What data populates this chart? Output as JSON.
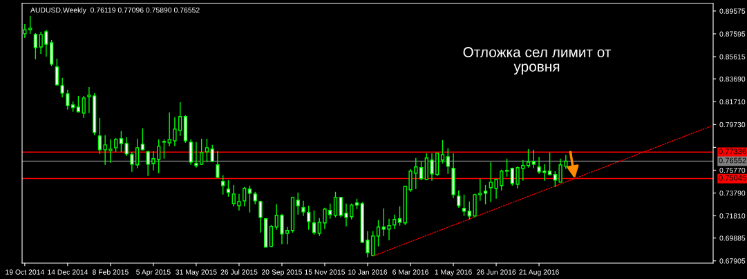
{
  "chart_data": {
    "type": "candlestick",
    "title": "AUDUSD,Weekly  0.76119 0.77096 0.75890 0.76552",
    "categories": [
      "19 Oct 2014",
      null,
      null,
      null,
      null,
      null,
      null,
      null,
      "14 Dec 2014",
      null,
      null,
      null,
      null,
      null,
      null,
      null,
      "8 Feb 2015",
      null,
      null,
      null,
      null,
      null,
      null,
      null,
      "5 Apr 2015",
      null,
      null,
      null,
      null,
      null,
      null,
      null,
      "31 May 2015",
      null,
      null,
      null,
      null,
      null,
      null,
      null,
      "26 Jul 2015",
      null,
      null,
      null,
      null,
      null,
      null,
      null,
      "20 Sep 2015",
      null,
      null,
      null,
      null,
      null,
      null,
      null,
      "15 Nov 2015",
      null,
      null,
      null,
      null,
      null,
      null,
      null,
      "10 Jan 2016",
      null,
      null,
      null,
      null,
      null,
      null,
      null,
      "6 Mar 2016",
      null,
      null,
      null,
      null,
      null,
      null,
      null,
      "1 May 2016",
      null,
      null,
      null,
      null,
      null,
      null,
      null,
      "26 Jun 2016",
      null,
      null,
      null,
      null,
      null,
      null,
      null,
      "21 Aug 2016",
      null,
      null,
      null,
      null,
      null,
      null,
      null,
      null,
      null,
      null,
      null,
      null,
      null,
      null,
      null,
      null,
      null,
      null,
      null,
      null,
      null,
      null,
      null,
      null,
      null,
      null,
      null,
      null,
      null,
      null,
      null,
      null
    ],
    "color": "#00ff00",
    "ohlc": [
      [
        0.876,
        0.8844,
        0.8724,
        0.8796
      ],
      [
        0.8796,
        0.8916,
        0.876,
        0.8808
      ],
      [
        0.8754,
        0.8766,
        0.8539,
        0.864
      ],
      [
        0.8646,
        0.8778,
        0.8586,
        0.8754
      ],
      [
        0.8778,
        0.8796,
        0.8562,
        0.867
      ],
      [
        0.8682,
        0.8706,
        0.8479,
        0.8497
      ],
      [
        0.8473,
        0.8545,
        0.8311,
        0.8317
      ],
      [
        0.8311,
        0.8377,
        0.8209,
        0.8245
      ],
      [
        0.8239,
        0.8275,
        0.8102,
        0.8137
      ],
      [
        0.8143,
        0.8173,
        0.8084,
        0.812
      ],
      [
        0.8125,
        0.8221,
        0.8078,
        0.8084
      ],
      [
        0.8072,
        0.8221,
        0.803,
        0.8203
      ],
      [
        0.8215,
        0.8299,
        0.8072,
        0.8227
      ],
      [
        0.8221,
        0.8245,
        0.788,
        0.7904
      ],
      [
        0.7874,
        0.803,
        0.7718,
        0.7754
      ],
      [
        0.7754,
        0.788,
        0.7623,
        0.7796
      ],
      [
        0.7748,
        0.7844,
        0.7641,
        0.776
      ],
      [
        0.7772,
        0.7856,
        0.7736,
        0.7844
      ],
      [
        0.785,
        0.7916,
        0.7736,
        0.7808
      ],
      [
        0.7808,
        0.7862,
        0.77,
        0.7718
      ],
      [
        0.7712,
        0.7736,
        0.7563,
        0.7629
      ],
      [
        0.7623,
        0.785,
        0.7593,
        0.7772
      ],
      [
        0.7802,
        0.794,
        0.7748,
        0.7754
      ],
      [
        0.7736,
        0.7748,
        0.7527,
        0.7629
      ],
      [
        0.7635,
        0.7742,
        0.7575,
        0.7677
      ],
      [
        0.7671,
        0.7844,
        0.7551,
        0.7784
      ],
      [
        0.782,
        0.7844,
        0.7677,
        0.7826
      ],
      [
        0.7814,
        0.8078,
        0.7784,
        0.7844
      ],
      [
        0.7832,
        0.8036,
        0.7784,
        0.7934
      ],
      [
        0.7922,
        0.8167,
        0.7874,
        0.8042
      ],
      [
        0.8042,
        0.8054,
        0.7814,
        0.7832
      ],
      [
        0.782,
        0.7844,
        0.7623,
        0.7647
      ],
      [
        0.7635,
        0.782,
        0.7599,
        0.7617
      ],
      [
        0.7629,
        0.785,
        0.7623,
        0.773
      ],
      [
        0.7736,
        0.785,
        0.7647,
        0.7772
      ],
      [
        0.776,
        0.7796,
        0.7647,
        0.7653
      ],
      [
        0.7623,
        0.7742,
        0.7509,
        0.7515
      ],
      [
        0.7479,
        0.7533,
        0.7365,
        0.7443
      ],
      [
        0.7413,
        0.7491,
        0.7347,
        0.7383
      ],
      [
        0.7287,
        0.7449,
        0.7264,
        0.7371
      ],
      [
        0.7269,
        0.7371,
        0.7228,
        0.7305
      ],
      [
        0.7311,
        0.7431,
        0.7264,
        0.7419
      ],
      [
        0.7413,
        0.7443,
        0.721,
        0.7377
      ],
      [
        0.7371,
        0.7389,
        0.7281,
        0.7311
      ],
      [
        0.7305,
        0.7311,
        0.7036,
        0.7168
      ],
      [
        0.7156,
        0.7162,
        0.691,
        0.691
      ],
      [
        0.6916,
        0.7102,
        0.691,
        0.709
      ],
      [
        0.7084,
        0.7281,
        0.706,
        0.7186
      ],
      [
        0.7186,
        0.7198,
        0.6934,
        0.7024
      ],
      [
        0.703,
        0.7084,
        0.6934,
        0.7054
      ],
      [
        0.7054,
        0.7347,
        0.7036,
        0.7341
      ],
      [
        0.7317,
        0.7383,
        0.7192,
        0.7269
      ],
      [
        0.7252,
        0.7311,
        0.718,
        0.7216
      ],
      [
        0.721,
        0.7269,
        0.706,
        0.7132
      ],
      [
        0.712,
        0.7228,
        0.7018,
        0.7036
      ],
      [
        0.703,
        0.7162,
        0.7006,
        0.7126
      ],
      [
        0.712,
        0.7252,
        0.7066,
        0.724
      ],
      [
        0.7228,
        0.7287,
        0.7156,
        0.7192
      ],
      [
        0.7186,
        0.7389,
        0.7168,
        0.7341
      ],
      [
        0.7341,
        0.7341,
        0.7168,
        0.7186
      ],
      [
        0.7204,
        0.7287,
        0.709,
        0.7168
      ],
      [
        0.7174,
        0.7287,
        0.715,
        0.7275
      ],
      [
        0.7293,
        0.7329,
        0.724,
        0.7275
      ],
      [
        0.7287,
        0.7299,
        0.6946,
        0.6952
      ],
      [
        0.697,
        0.7048,
        0.6821,
        0.6862
      ],
      [
        0.6838,
        0.7048,
        0.6832,
        0.7006
      ],
      [
        0.7006,
        0.7144,
        0.6916,
        0.7084
      ],
      [
        0.7084,
        0.7246,
        0.7006,
        0.7066
      ],
      [
        0.7066,
        0.7156,
        0.697,
        0.7096
      ],
      [
        0.7102,
        0.7192,
        0.7066,
        0.715
      ],
      [
        0.7156,
        0.7264,
        0.7096,
        0.7126
      ],
      [
        0.712,
        0.7443,
        0.7102,
        0.7437
      ],
      [
        0.7407,
        0.7587,
        0.7389,
        0.7569
      ],
      [
        0.7551,
        0.7683,
        0.7413,
        0.7605
      ],
      [
        0.7599,
        0.7653,
        0.7491,
        0.7503
      ],
      [
        0.7497,
        0.7724,
        0.7491,
        0.7683
      ],
      [
        0.7665,
        0.7724,
        0.7485,
        0.7545
      ],
      [
        0.7539,
        0.7724,
        0.7527,
        0.7724
      ],
      [
        0.7665,
        0.7838,
        0.7635,
        0.7712
      ],
      [
        0.7694,
        0.7766,
        0.7545,
        0.7611
      ],
      [
        0.7593,
        0.7724,
        0.7335,
        0.7365
      ],
      [
        0.7353,
        0.7401,
        0.7252,
        0.7269
      ],
      [
        0.7246,
        0.7365,
        0.718,
        0.7222
      ],
      [
        0.7222,
        0.7305,
        0.715,
        0.718
      ],
      [
        0.718,
        0.7371,
        0.7168,
        0.7365
      ],
      [
        0.7365,
        0.7503,
        0.7311,
        0.7377
      ],
      [
        0.7395,
        0.7449,
        0.7281,
        0.7377
      ],
      [
        0.7425,
        0.7647,
        0.7299,
        0.7473
      ],
      [
        0.7419,
        0.7503,
        0.7329,
        0.7497
      ],
      [
        0.7443,
        0.7581,
        0.7401,
        0.7569
      ],
      [
        0.7569,
        0.7677,
        0.7521,
        0.7575
      ],
      [
        0.7593,
        0.7599,
        0.7443,
        0.7461
      ],
      [
        0.7455,
        0.7611,
        0.7419,
        0.7599
      ],
      [
        0.7593,
        0.7665,
        0.7485,
        0.7617
      ],
      [
        0.7617,
        0.776,
        0.7599,
        0.7647
      ],
      [
        0.7653,
        0.7754,
        0.7593,
        0.7629
      ],
      [
        0.7605,
        0.7694,
        0.7545,
        0.7563
      ],
      [
        0.7569,
        0.7629,
        0.7485,
        0.7557
      ],
      [
        0.7569,
        0.773,
        0.7533,
        0.7539
      ],
      [
        0.7539,
        0.7569,
        0.7431,
        0.7491
      ],
      [
        0.7473,
        0.7677,
        0.7473,
        0.7623
      ],
      [
        0.76119,
        0.77096,
        0.7589,
        0.76552
      ],
      null,
      null,
      null,
      null,
      null,
      null,
      null,
      null,
      null,
      null,
      null,
      null,
      null,
      null,
      null,
      null,
      null,
      null,
      null,
      null,
      null,
      null,
      null,
      null,
      null,
      null,
      null
    ],
    "series": [
      {
        "type": "line",
        "color": "#ff0000",
        "line_style": "dotted",
        "values": [
          null,
          null,
          null,
          null,
          null,
          null,
          null,
          null,
          null,
          null,
          null,
          null,
          null,
          null,
          null,
          null,
          null,
          null,
          null,
          null,
          null,
          null,
          null,
          null,
          null,
          null,
          null,
          null,
          null,
          null,
          null,
          null,
          null,
          null,
          null,
          null,
          null,
          null,
          null,
          null,
          null,
          null,
          null,
          null,
          null,
          null,
          null,
          null,
          null,
          null,
          null,
          null,
          null,
          null,
          null,
          null,
          null,
          null,
          null,
          null,
          null,
          null,
          null,
          null,
          null,
          0.6832,
          null,
          null,
          null,
          null,
          null,
          null,
          null,
          null,
          null,
          null,
          null,
          null,
          null,
          null,
          null,
          null,
          null,
          null,
          null,
          null,
          null,
          null,
          null,
          null,
          null,
          null,
          null,
          null,
          null,
          null,
          null,
          null,
          null,
          null,
          null,
          null,
          null,
          null,
          null,
          null,
          null,
          null,
          null,
          null,
          null,
          null,
          null,
          null,
          null,
          null,
          null,
          null,
          null,
          null,
          null,
          null,
          null,
          null,
          null,
          null,
          null,
          null,
          0.7957
        ]
      }
    ],
    "ylim": [
      0.6771,
      0.9023
    ],
    "yticks": [
      0.67905,
      0.69885,
      {
        "value": 0.7181,
        "label": "0.71810"
      },
      {
        "value": 0.7379,
        "label": "0.73790"
      },
      {
        "value": 0.7577,
        "label": "0.75770"
      },
      {
        "value": 0.7775,
        "label": null
      },
      {
        "value": 0.7973,
        "label": "0.79730"
      },
      {
        "value": 0.8171,
        "label": "0.81710"
      },
      {
        "value": 0.8369,
        "label": "0.83690"
      },
      0.85615,
      0.87595,
      0.89575
    ],
    "ref_lines": [
      {
        "axis": "y",
        "value": 0.77336,
        "label": "0.77336",
        "color": "#ff0000"
      },
      {
        "axis": "y",
        "value": 0.76552,
        "label": "0.76552",
        "color": "#808080"
      },
      {
        "axis": "y",
        "value": 0.75045,
        "label": "0.75045",
        "color": "#ff0000"
      }
    ],
    "annotations": [
      "Отложка сел лимит от\nуровня"
    ],
    "grid": false,
    "legend": false
  }
}
